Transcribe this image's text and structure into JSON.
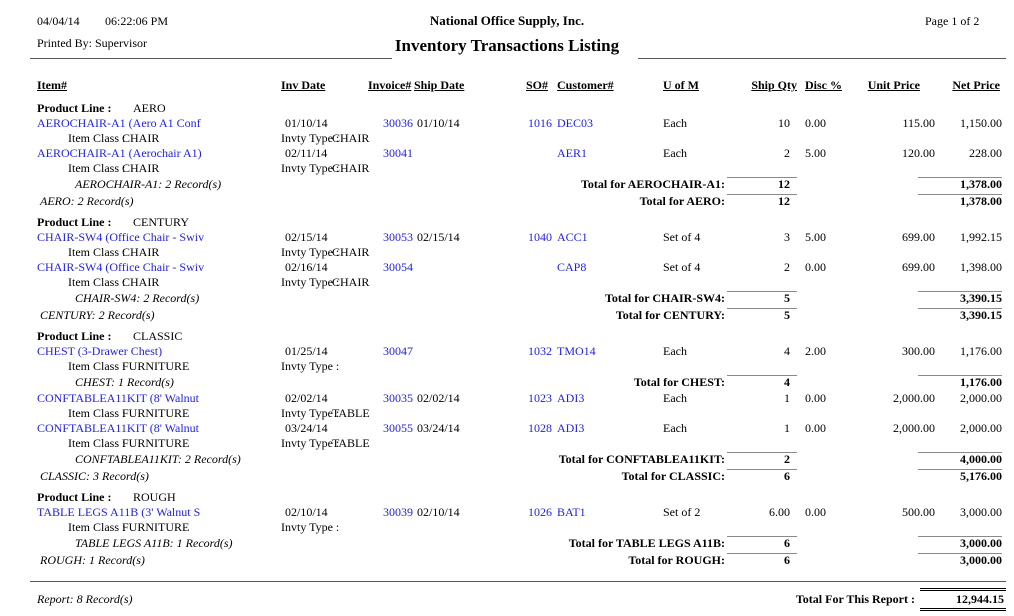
{
  "page": {
    "printed_date": "04/04/14",
    "printed_time": "06:22:06 PM",
    "printed_by": "Printed By: Supervisor",
    "company": "National Office Supply, Inc.",
    "title": "Inventory Transactions Listing",
    "page_label": "Page 1 of 2"
  },
  "columns": {
    "item": "Item#",
    "inv_date": "Inv Date",
    "invoice": "Invoice#",
    "ship_date": "Ship Date",
    "so": "SO#",
    "customer": "Customer#",
    "uom": "U of M",
    "ship_qty": "Ship Qty",
    "disc": "Disc %",
    "unit_price": "Unit Price",
    "net_price": "Net Price"
  },
  "labels": {
    "product_line": "Product Line :",
    "item_class": "Item Class :",
    "invty_type": "Invty Type :"
  },
  "colors": {
    "link_blue": "#2222e0",
    "rule_gray": "#8a8a8a"
  },
  "sections": [
    {
      "name": "AERO",
      "groups": [
        {
          "rows": [
            {
              "item": "AEROCHAIR-A1 (Aero A1 Conf",
              "inv_date": "01/10/14",
              "invoice": "30036",
              "ship_date": "01/10/14",
              "so": "1016",
              "customer": "DEC03",
              "uom": "Each",
              "qty": "10",
              "disc": "0.00",
              "unit_price": "115.00",
              "net_price": "1,150.00",
              "item_class": "CHAIR",
              "invty_type": "CHAIR"
            },
            {
              "item": "AEROCHAIR-A1 (Aerochair A1)",
              "inv_date": "02/11/14",
              "invoice": "30041",
              "ship_date": "",
              "so": "",
              "customer": "AER1",
              "uom": "Each",
              "qty": "2",
              "disc": "5.00",
              "unit_price": "120.00",
              "net_price": "228.00",
              "item_class": "CHAIR",
              "invty_type": "CHAIR"
            }
          ],
          "count_label": "AEROCHAIR-A1: 2 Record(s)",
          "total_label": "Total for AEROCHAIR-A1:",
          "total_qty": "12",
          "total_net": "1,378.00"
        }
      ],
      "count_label": "AERO: 2 Record(s)",
      "total_label": "Total for AERO:",
      "total_qty": "12",
      "total_net": "1,378.00"
    },
    {
      "name": "CENTURY",
      "groups": [
        {
          "rows": [
            {
              "item": "CHAIR-SW4 (Office Chair - Swiv",
              "inv_date": "02/15/14",
              "invoice": "30053",
              "ship_date": "02/15/14",
              "so": "1040",
              "customer": "ACC1",
              "uom": "Set of 4",
              "qty": "3",
              "disc": "5.00",
              "unit_price": "699.00",
              "net_price": "1,992.15",
              "item_class": "CHAIR",
              "invty_type": "CHAIR"
            },
            {
              "item": "CHAIR-SW4 (Office Chair - Swiv",
              "inv_date": "02/16/14",
              "invoice": "30054",
              "ship_date": "",
              "so": "",
              "customer": "CAP8",
              "uom": "Set of 4",
              "qty": "2",
              "disc": "0.00",
              "unit_price": "699.00",
              "net_price": "1,398.00",
              "item_class": "CHAIR",
              "invty_type": "CHAIR"
            }
          ],
          "count_label": "CHAIR-SW4: 2 Record(s)",
          "total_label": "Total for CHAIR-SW4:",
          "total_qty": "5",
          "total_net": "3,390.15"
        }
      ],
      "count_label": "CENTURY: 2 Record(s)",
      "total_label": "Total for CENTURY:",
      "total_qty": "5",
      "total_net": "3,390.15"
    },
    {
      "name": "CLASSIC",
      "groups": [
        {
          "rows": [
            {
              "item": "CHEST (3-Drawer Chest)",
              "inv_date": "01/25/14",
              "invoice": "30047",
              "ship_date": "",
              "so": "1032",
              "customer": "TMO14",
              "uom": "Each",
              "qty": "4",
              "disc": "2.00",
              "unit_price": "300.00",
              "net_price": "1,176.00",
              "item_class": "FURNITURE",
              "invty_type": ""
            }
          ],
          "count_label": "CHEST: 1 Record(s)",
          "total_label": "Total for CHEST:",
          "total_qty": "4",
          "total_net": "1,176.00"
        },
        {
          "rows": [
            {
              "item": "CONFTABLEA11KIT (8' Walnut",
              "inv_date": "02/02/14",
              "invoice": "30035",
              "ship_date": "02/02/14",
              "so": "1023",
              "customer": "ADI3",
              "uom": "Each",
              "qty": "1",
              "disc": "0.00",
              "unit_price": "2,000.00",
              "net_price": "2,000.00",
              "item_class": "FURNITURE",
              "invty_type": "TABLE"
            },
            {
              "item": "CONFTABLEA11KIT (8' Walnut",
              "inv_date": "03/24/14",
              "invoice": "30055",
              "ship_date": "03/24/14",
              "so": "1028",
              "customer": "ADI3",
              "uom": "Each",
              "qty": "1",
              "disc": "0.00",
              "unit_price": "2,000.00",
              "net_price": "2,000.00",
              "item_class": "FURNITURE",
              "invty_type": "TABLE"
            }
          ],
          "count_label": "CONFTABLEA11KIT: 2 Record(s)",
          "total_label": "Total for CONFTABLEA11KIT:",
          "total_qty": "2",
          "total_net": "4,000.00"
        }
      ],
      "count_label": "CLASSIC: 3 Record(s)",
      "total_label": "Total for CLASSIC:",
      "total_qty": "6",
      "total_net": "5,176.00"
    },
    {
      "name": "ROUGH",
      "groups": [
        {
          "rows": [
            {
              "item": "TABLE LEGS A11B (3' Walnut S",
              "inv_date": "02/10/14",
              "invoice": "30039",
              "ship_date": "02/10/14",
              "so": "1026",
              "customer": "BAT1",
              "uom": "Set of 2",
              "qty": "6.00",
              "disc": "0.00",
              "unit_price": "500.00",
              "net_price": "3,000.00",
              "item_class": "FURNITURE",
              "invty_type": ""
            }
          ],
          "count_label": "TABLE LEGS A11B: 1 Record(s)",
          "total_label": "Total for TABLE LEGS A11B:",
          "total_qty": "6",
          "total_net": "3,000.00"
        }
      ],
      "count_label": "ROUGH: 1 Record(s)",
      "total_label": "Total for ROUGH:",
      "total_qty": "6",
      "total_net": "3,000.00"
    }
  ],
  "report_footer": {
    "count_label": "Report: 8 Record(s)",
    "total_label": "Total For This Report :",
    "total_value": "12,944.15"
  }
}
